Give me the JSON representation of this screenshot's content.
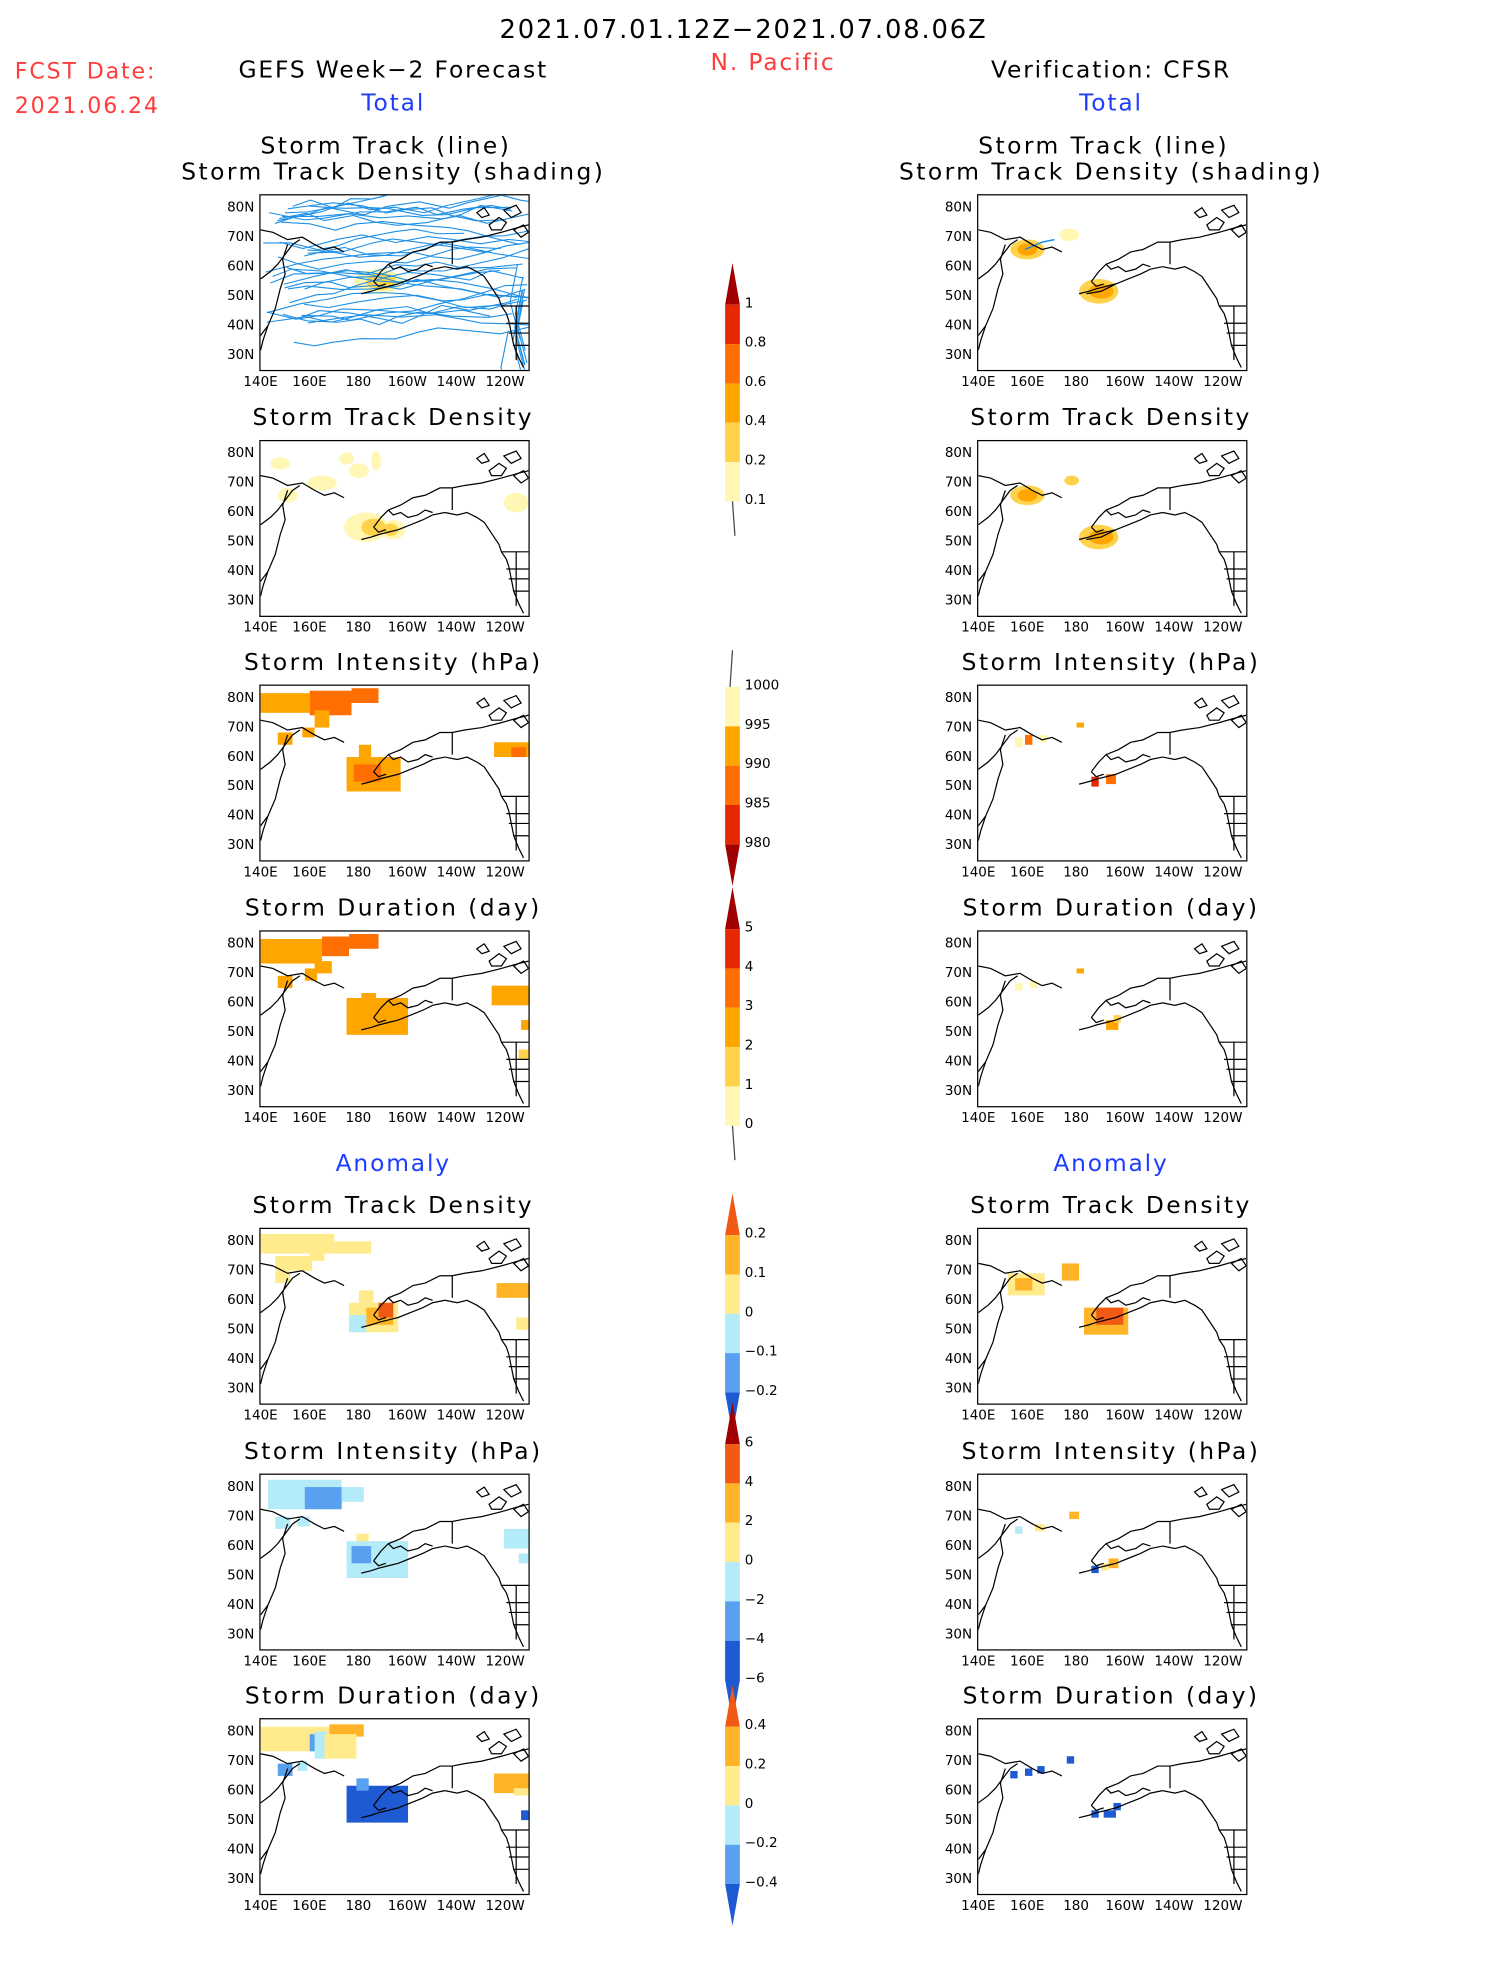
{
  "header": {
    "date_range": "2021.07.01.12Z−2021.07.08.06Z",
    "fcst_label": "FCST Date:",
    "fcst_date": "2021.06.24",
    "left_title": "GEFS Week−2 Forecast",
    "region": "N. Pacific",
    "right_title": "Verification: CFSR",
    "total_label": "Total",
    "anomaly_label": "Anomaly"
  },
  "axes": {
    "lat_ticks": [
      "80N",
      "70N",
      "60N",
      "50N",
      "40N",
      "30N"
    ],
    "lon_ticks": [
      "140E",
      "160E",
      "180",
      "160W",
      "140W",
      "120W"
    ]
  },
  "colors": {
    "track_line": "#1e90e6",
    "coast": "#000000",
    "seq": [
      "#fff7b3",
      "#ffd24c",
      "#ffa500",
      "#ff6e00",
      "#e62800",
      "#a00000"
    ],
    "div": [
      "#1e5ad2",
      "#5aa0f0",
      "#b4ebf8",
      "#ffeb8c",
      "#ffb428",
      "#f05a14"
    ]
  },
  "panels": {
    "track_title_1": "Storm Track (line)",
    "track_title_2": "Storm Track Density (shading)",
    "density": "Storm Track Density",
    "intensity": "Storm Intensity (hPa)",
    "duration": "Storm Duration (day)"
  },
  "colorbars": {
    "density_total": [
      "1",
      "0.8",
      "0.6",
      "0.4",
      "0.2",
      "0.1"
    ],
    "intensity_total": [
      "1000",
      "995",
      "990",
      "985",
      "980"
    ],
    "duration_total": [
      "5",
      "4",
      "3",
      "2",
      "1",
      "0"
    ],
    "density_anom": [
      "0.2",
      "0.1",
      "0",
      "−0.1",
      "−0.2"
    ],
    "intensity_anom": [
      "6",
      "4",
      "2",
      "0",
      "−2",
      "−4",
      "−6"
    ],
    "duration_anom": [
      "0.4",
      "0.2",
      "0",
      "−0.2",
      "−0.4"
    ]
  }
}
